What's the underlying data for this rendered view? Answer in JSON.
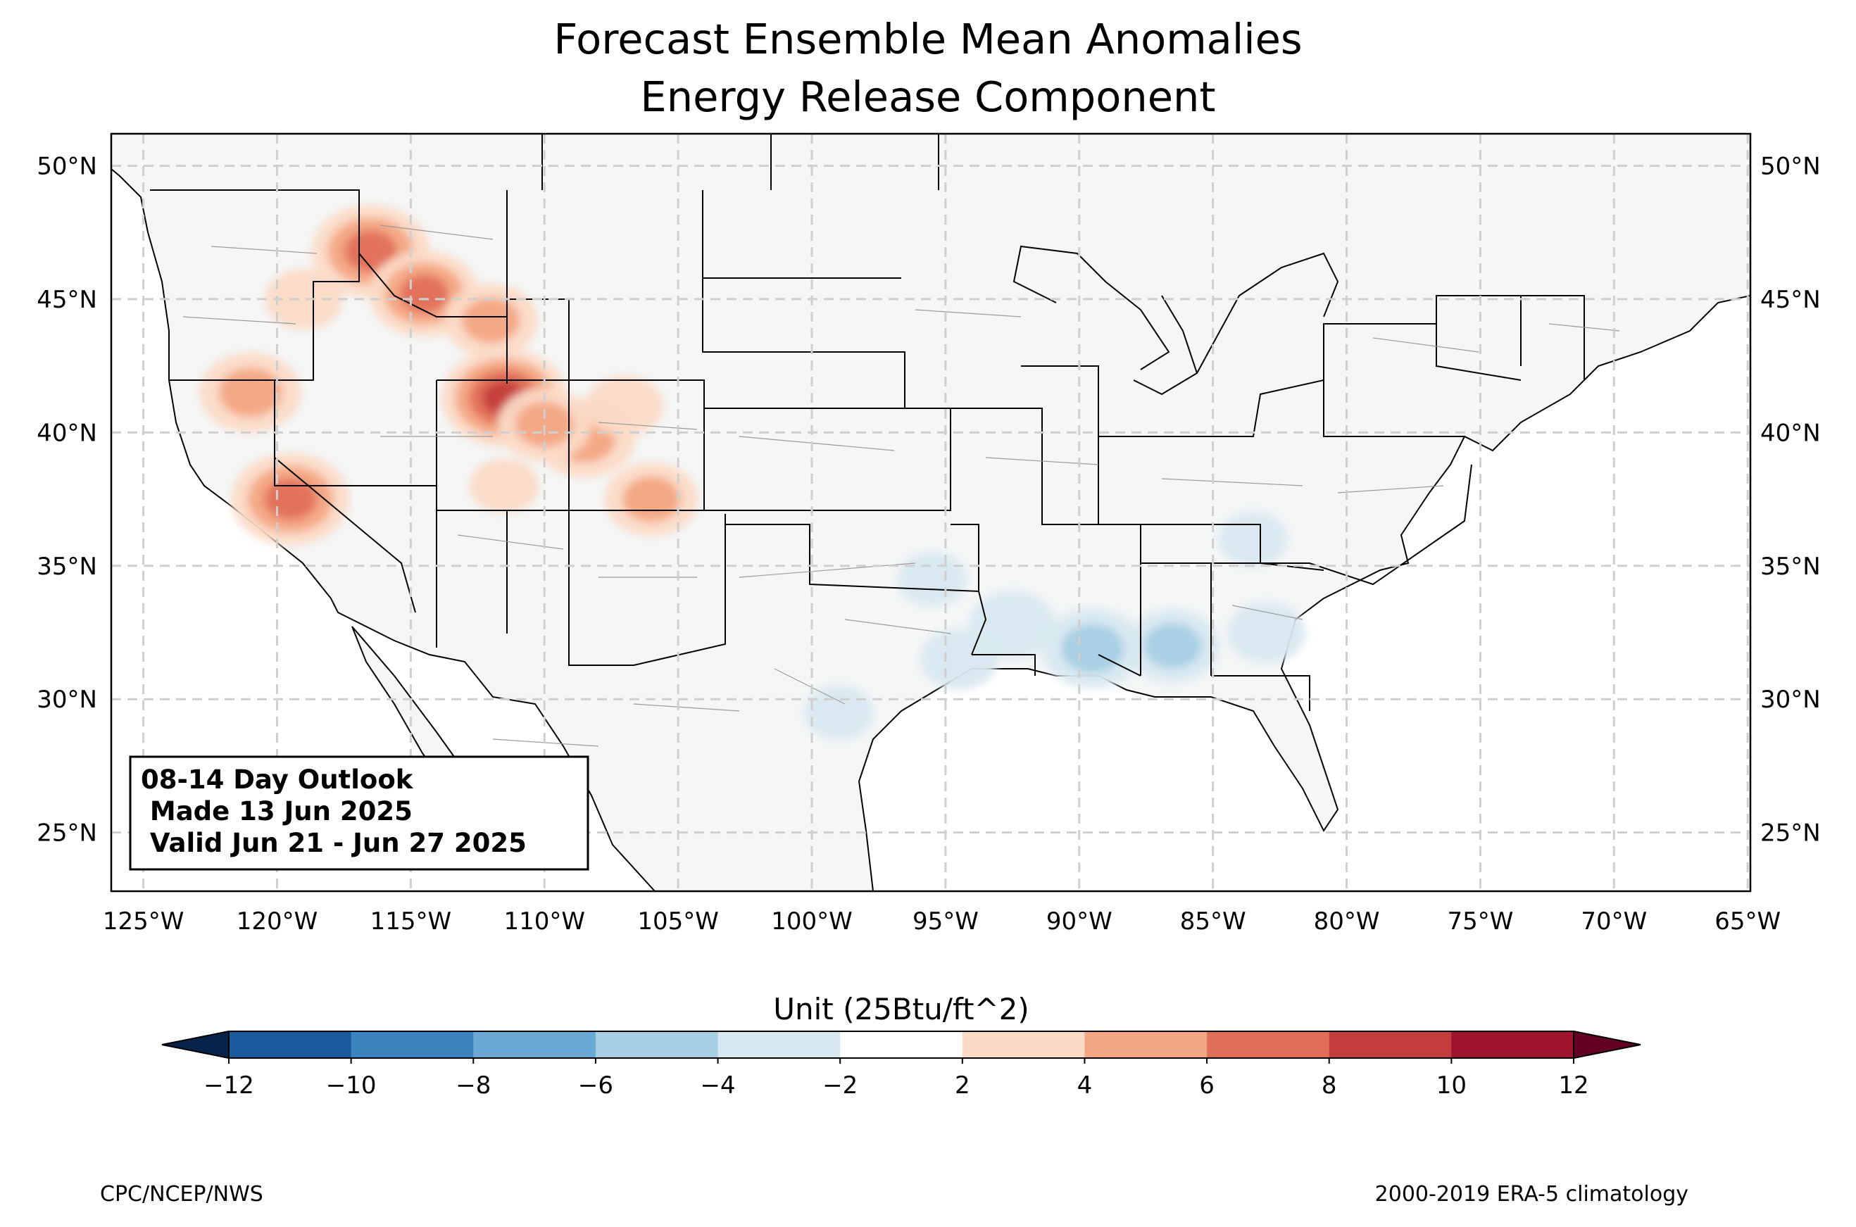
{
  "title_line1": "Forecast Ensemble Mean Anomalies",
  "title_line2": "Energy Release Component",
  "outlook": {
    "line1": "08-14 Day Outlook",
    "line2": " Made 13 Jun 2025",
    "line3": " Valid Jun 21 - Jun 27 2025"
  },
  "x_ticks": [
    "125°W",
    "120°W",
    "115°W",
    "110°W",
    "105°W",
    "100°W",
    "95°W",
    "90°W",
    "85°W",
    "80°W",
    "75°W",
    "70°W",
    "65°W"
  ],
  "y_ticks": [
    "50°N",
    "45°N",
    "40°N",
    "35°N",
    "30°N",
    "25°N"
  ],
  "colorbar": {
    "label": "Unit (25Btu/ft^2)",
    "ticks": [
      "−12",
      "−10",
      "−8",
      "−6",
      "−4",
      "−2",
      "2",
      "4",
      "6",
      "8",
      "10",
      "12"
    ],
    "colors": [
      "#1b5a9c",
      "#3b84bd",
      "#69a9d3",
      "#a7cfe4",
      "#d8e8f0",
      "#ffffff",
      "#fbdac6",
      "#f3a683",
      "#e06f5a",
      "#c43c3c",
      "#a0132d"
    ],
    "under_color": "#08234a",
    "over_color": "#640021",
    "extend": "both"
  },
  "map_extent": {
    "lon": [
      -126.2,
      -64.9
    ],
    "lat": [
      22.8,
      51.2
    ]
  },
  "lon_ticks": [
    -125,
    -120,
    -115,
    -110,
    -105,
    -100,
    -95,
    -90,
    -85,
    -80,
    -75,
    -70,
    -65
  ],
  "lat_ticks": [
    50,
    45,
    40,
    35,
    30,
    25
  ],
  "anomaly_fields": [
    {
      "lon": -116.5,
      "lat": 46.8,
      "value": 9
    },
    {
      "lon": -114.5,
      "lat": 45.2,
      "value": 8
    },
    {
      "lon": -119.0,
      "lat": 45.0,
      "value": 4
    },
    {
      "lon": -112.0,
      "lat": 44.2,
      "value": 6
    },
    {
      "lon": -111.5,
      "lat": 41.3,
      "value": 10
    },
    {
      "lon": -121.0,
      "lat": 41.5,
      "value": 7
    },
    {
      "lon": -119.5,
      "lat": 37.5,
      "value": 9
    },
    {
      "lon": -108.5,
      "lat": 39.8,
      "value": 7
    },
    {
      "lon": -110.0,
      "lat": 40.3,
      "value": 6
    },
    {
      "lon": -106.0,
      "lat": 37.5,
      "value": 6
    },
    {
      "lon": -107.0,
      "lat": 41.0,
      "value": 4
    },
    {
      "lon": -111.5,
      "lat": 38.0,
      "value": 3
    },
    {
      "lon": -89.5,
      "lat": 31.9,
      "value": -7
    },
    {
      "lon": -86.5,
      "lat": 32.0,
      "value": -6
    },
    {
      "lon": -92.5,
      "lat": 32.8,
      "value": -5
    },
    {
      "lon": -94.5,
      "lat": 31.5,
      "value": -4
    },
    {
      "lon": -83.0,
      "lat": 32.5,
      "value": -4
    },
    {
      "lon": -83.5,
      "lat": 36.0,
      "value": -3
    },
    {
      "lon": -95.5,
      "lat": 34.5,
      "value": -3
    },
    {
      "lon": -99.0,
      "lat": 29.5,
      "value": -3
    }
  ],
  "footer_left": "CPC/NCEP/NWS",
  "footer_right": "2000-2019 ERA-5 climatology"
}
